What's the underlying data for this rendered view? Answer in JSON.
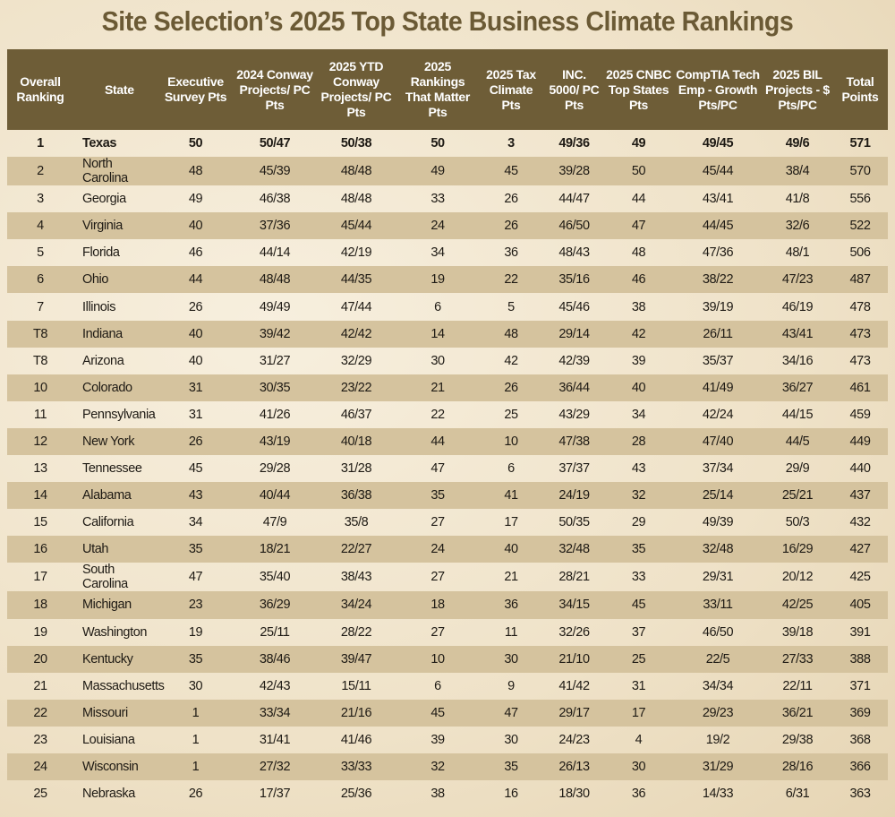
{
  "title": "Site Selection’s 2025 Top State Business Climate Rankings",
  "chart_data": {
    "type": "table",
    "title": "Site Selection’s 2025 Top State Business Climate Rankings",
    "headers": [
      "Overall Ranking",
      "State",
      "Executive Survey Pts",
      "2024 Conway Projects/ PC Pts",
      "2025 YTD Conway Projects/ PC Pts",
      "2025 Rankings That Matter Pts",
      "2025 Tax Climate Pts",
      "INC. 5000/ PC Pts",
      "2025 CNBC Top States Pts",
      "CompTIA Tech Emp - Growth Pts/PC",
      "2025 BIL Projects - $ Pts/PC",
      "Total Points"
    ],
    "rows": [
      [
        "1",
        "Texas",
        "50",
        "50/47",
        "50/38",
        "50",
        "3",
        "49/36",
        "49",
        "49/45",
        "49/6",
        "571"
      ],
      [
        "2",
        "North Carolina",
        "48",
        "45/39",
        "48/48",
        "49",
        "45",
        "39/28",
        "50",
        "45/44",
        "38/4",
        "570"
      ],
      [
        "3",
        "Georgia",
        "49",
        "46/38",
        "48/48",
        "33",
        "26",
        "44/47",
        "44",
        "43/41",
        "41/8",
        "556"
      ],
      [
        "4",
        "Virginia",
        "40",
        "37/36",
        "45/44",
        "24",
        "26",
        "46/50",
        "47",
        "44/45",
        "32/6",
        "522"
      ],
      [
        "5",
        "Florida",
        "46",
        "44/14",
        "42/19",
        "34",
        "36",
        "48/43",
        "48",
        "47/36",
        "48/1",
        "506"
      ],
      [
        "6",
        "Ohio",
        "44",
        "48/48",
        "44/35",
        "19",
        "22",
        "35/16",
        "46",
        "38/22",
        "47/23",
        "487"
      ],
      [
        "7",
        "Illinois",
        "26",
        "49/49",
        "47/44",
        "6",
        "5",
        "45/46",
        "38",
        "39/19",
        "46/19",
        "478"
      ],
      [
        "T8",
        "Indiana",
        "40",
        "39/42",
        "42/42",
        "14",
        "48",
        "29/14",
        "42",
        "26/11",
        "43/41",
        "473"
      ],
      [
        "T8",
        "Arizona",
        "40",
        "31/27",
        "32/29",
        "30",
        "42",
        "42/39",
        "39",
        "35/37",
        "34/16",
        "473"
      ],
      [
        "10",
        "Colorado",
        "31",
        "30/35",
        "23/22",
        "21",
        "26",
        "36/44",
        "40",
        "41/49",
        "36/27",
        "461"
      ],
      [
        "11",
        "Pennsylvania",
        "31",
        "41/26",
        "46/37",
        "22",
        "25",
        "43/29",
        "34",
        "42/24",
        "44/15",
        "459"
      ],
      [
        "12",
        "New York",
        "26",
        "43/19",
        "40/18",
        "44",
        "10",
        "47/38",
        "28",
        "47/40",
        "44/5",
        "449"
      ],
      [
        "13",
        "Tennessee",
        "45",
        "29/28",
        "31/28",
        "47",
        "6",
        "37/37",
        "43",
        "37/34",
        "29/9",
        "440"
      ],
      [
        "14",
        "Alabama",
        "43",
        "40/44",
        "36/38",
        "35",
        "41",
        "24/19",
        "32",
        "25/14",
        "25/21",
        "437"
      ],
      [
        "15",
        "California",
        "34",
        "47/9",
        "35/8",
        "27",
        "17",
        "50/35",
        "29",
        "49/39",
        "50/3",
        "432"
      ],
      [
        "16",
        "Utah",
        "35",
        "18/21",
        "22/27",
        "24",
        "40",
        "32/48",
        "35",
        "32/48",
        "16/29",
        "427"
      ],
      [
        "17",
        "South Carolina",
        "47",
        "35/40",
        "38/43",
        "27",
        "21",
        "28/21",
        "33",
        "29/31",
        "20/12",
        "425"
      ],
      [
        "18",
        "Michigan",
        "23",
        "36/29",
        "34/24",
        "18",
        "36",
        "34/15",
        "45",
        "33/11",
        "42/25",
        "405"
      ],
      [
        "19",
        "Washington",
        "19",
        "25/11",
        "28/22",
        "27",
        "11",
        "32/26",
        "37",
        "46/50",
        "39/18",
        "391"
      ],
      [
        "20",
        "Kentucky",
        "35",
        "38/46",
        "39/47",
        "10",
        "30",
        "21/10",
        "25",
        "22/5",
        "27/33",
        "388"
      ],
      [
        "21",
        "Massachusetts",
        "30",
        "42/43",
        "15/11",
        "6",
        "9",
        "41/42",
        "31",
        "34/34",
        "22/11",
        "371"
      ],
      [
        "22",
        "Missouri",
        "1",
        "33/34",
        "21/16",
        "45",
        "47",
        "29/17",
        "17",
        "29/23",
        "36/21",
        "369"
      ],
      [
        "23",
        "Louisiana",
        "1",
        "31/41",
        "41/46",
        "39",
        "30",
        "24/23",
        "4",
        "19/2",
        "29/38",
        "368"
      ],
      [
        "24",
        "Wisconsin",
        "1",
        "27/32",
        "33/33",
        "32",
        "35",
        "26/13",
        "30",
        "31/29",
        "28/16",
        "366"
      ],
      [
        "25",
        "Nebraska",
        "26",
        "17/37",
        "25/36",
        "38",
        "16",
        "18/30",
        "36",
        "14/33",
        "6/31",
        "363"
      ]
    ]
  },
  "colors": {
    "header": "#6e5d37",
    "title": "#6b5a35",
    "shade": "#d5c39e"
  }
}
